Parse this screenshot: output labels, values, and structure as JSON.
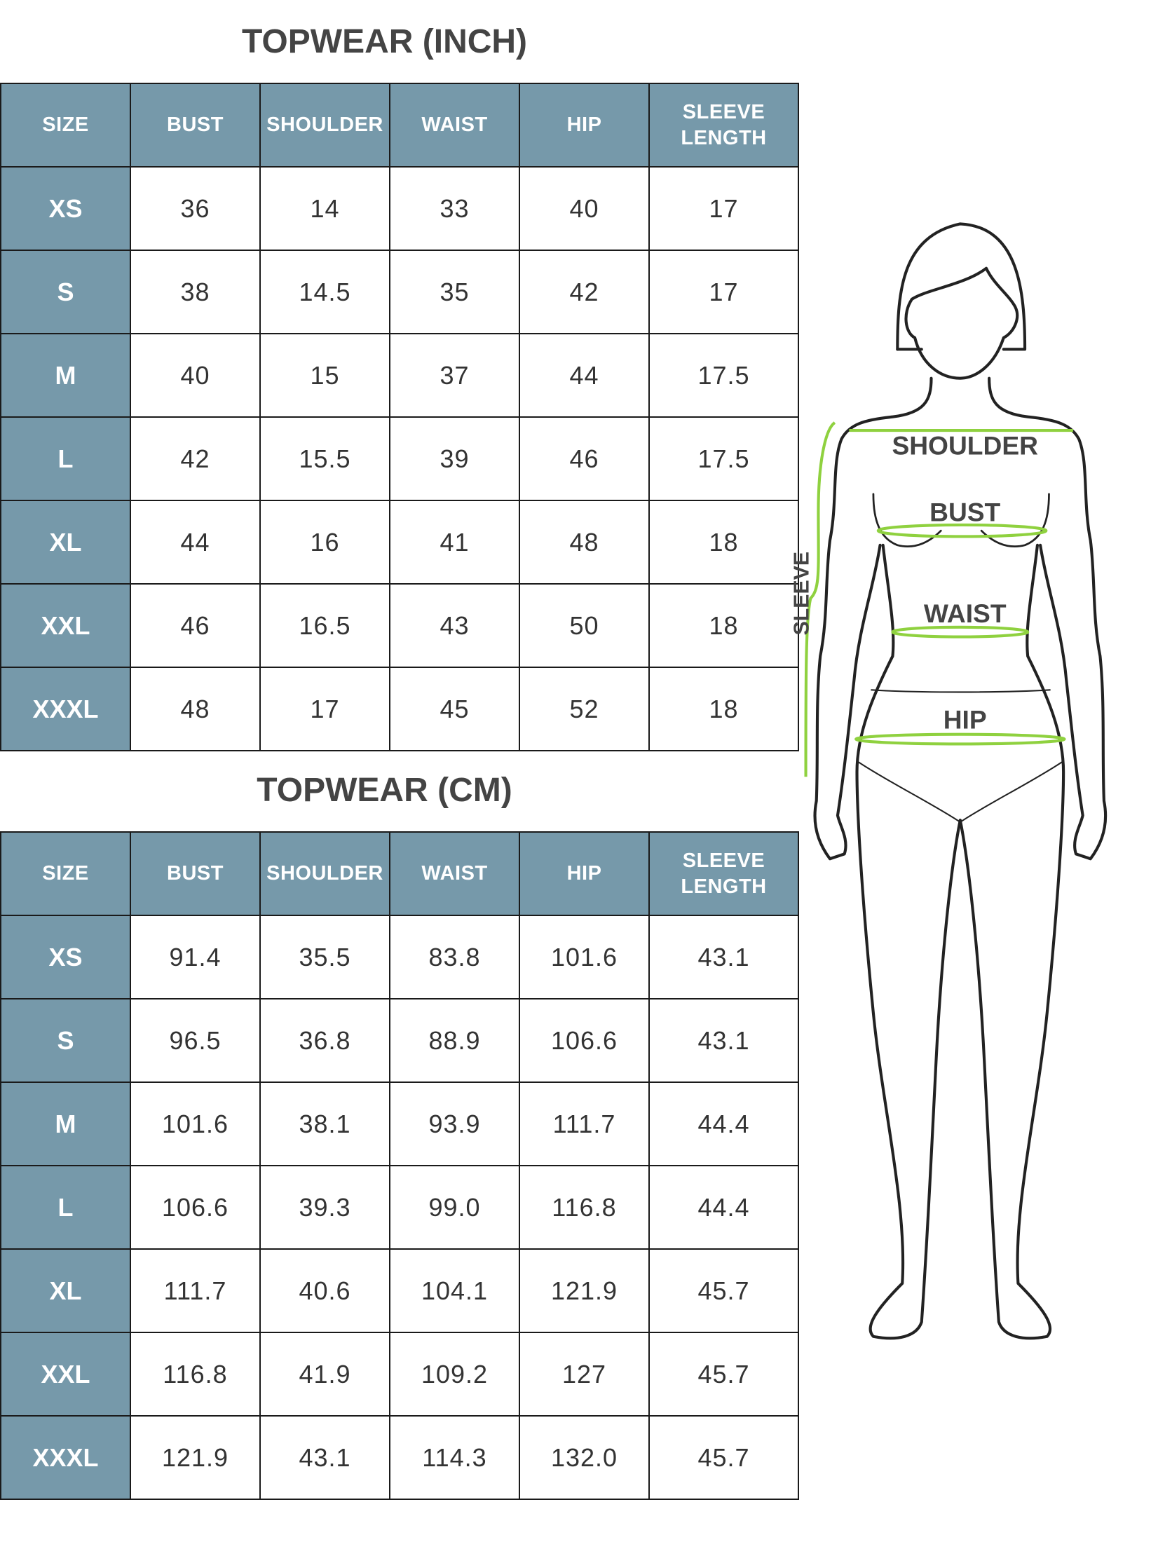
{
  "tables": [
    {
      "title": "TOPWEAR (INCH)",
      "headers": [
        "SIZE",
        "BUST",
        "SHOULDER",
        "WAIST",
        "HIP",
        "SLEEVE LENGTH"
      ],
      "rows": [
        [
          "XS",
          "36",
          "14",
          "33",
          "40",
          "17"
        ],
        [
          "S",
          "38",
          "14.5",
          "35",
          "42",
          "17"
        ],
        [
          "M",
          "40",
          "15",
          "37",
          "44",
          "17.5"
        ],
        [
          "L",
          "42",
          "15.5",
          "39",
          "46",
          "17.5"
        ],
        [
          "XL",
          "44",
          "16",
          "41",
          "48",
          "18"
        ],
        [
          "XXL",
          "46",
          "16.5",
          "43",
          "50",
          "18"
        ],
        [
          "XXXL",
          "48",
          "17",
          "45",
          "52",
          "18"
        ]
      ]
    },
    {
      "title": "TOPWEAR (CM)",
      "headers": [
        "SIZE",
        "BUST",
        "SHOULDER",
        "WAIST",
        "HIP",
        "SLEEVE LENGTH"
      ],
      "rows": [
        [
          "XS",
          "91.4",
          "35.5",
          "83.8",
          "101.6",
          "43.1"
        ],
        [
          "S",
          "96.5",
          "36.8",
          "88.9",
          "106.6",
          "43.1"
        ],
        [
          "M",
          "101.6",
          "38.1",
          "93.9",
          "111.7",
          "44.4"
        ],
        [
          "L",
          "106.6",
          "39.3",
          "99.0",
          "116.8",
          "44.4"
        ],
        [
          "XL",
          "111.7",
          "40.6",
          "104.1",
          "121.9",
          "45.7"
        ],
        [
          "XXL",
          "116.8",
          "41.9",
          "109.2",
          "127",
          "45.7"
        ],
        [
          "XXXL",
          "121.9",
          "43.1",
          "114.3",
          "132.0",
          "45.7"
        ]
      ]
    }
  ],
  "figure": {
    "labels": {
      "shoulder": "SHOULDER",
      "bust": "BUST",
      "waist": "WAIST",
      "hip": "HIP",
      "sleeve": "SLEEVE"
    },
    "measure_color": "#8fd13f",
    "header_color": "#7699aa"
  }
}
